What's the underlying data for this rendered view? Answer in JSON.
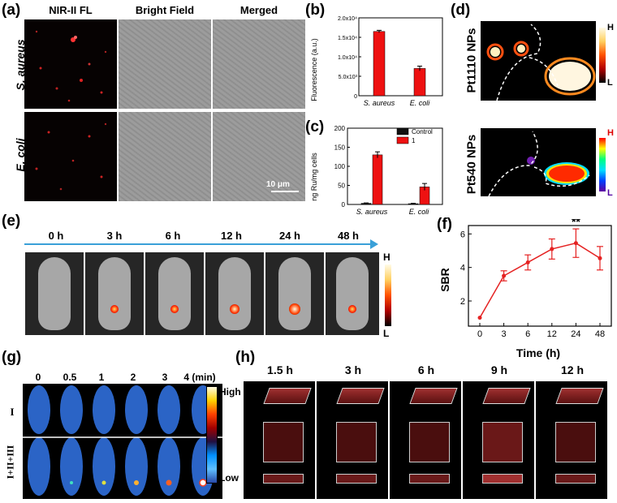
{
  "panel_a": {
    "label": "(a)",
    "col_headers": [
      "NIR-II FL",
      "Bright Field",
      "Merged"
    ],
    "row_labels": [
      "S. aureus",
      "E. coli"
    ],
    "scale_bar": "10 μm"
  },
  "panel_b": {
    "label": "(b)"
  },
  "panel_c": {
    "label": "(c)"
  },
  "panel_d": {
    "label": "(d)",
    "rows": [
      "Pt1110 NPs",
      "Pt540 NPs"
    ],
    "scale_high": "H",
    "scale_low": "L"
  },
  "panel_e": {
    "label": "(e)",
    "times": [
      "0 h",
      "3 h",
      "6 h",
      "12 h",
      "24 h",
      "48 h"
    ],
    "scale_high": "H",
    "scale_low": "L"
  },
  "panel_f": {
    "label": "(f)"
  },
  "panel_g": {
    "label": "(g)",
    "times": [
      "0",
      "0.5",
      "1",
      "2",
      "3",
      "4 (min)"
    ],
    "rows": [
      "I",
      "I+II+III"
    ],
    "scale_high": "High",
    "scale_low": "Low"
  },
  "panel_h": {
    "label": "(h)",
    "times": [
      "1.5 h",
      "3 h",
      "6 h",
      "9 h",
      "12 h"
    ]
  },
  "chart_data": [
    {
      "id": "b",
      "type": "bar",
      "categories": [
        "S. aureus",
        "E. coli"
      ],
      "values": [
        16500,
        7000
      ],
      "errors": [
        300,
        600
      ],
      "ylabel": "Fluorescence (a.u.)",
      "ylim": [
        0,
        20000
      ],
      "yticks": [
        "0",
        "5.0x10³",
        "1.0x10⁴",
        "1.5x10⁴",
        "2.0x10⁴"
      ],
      "color": "#ee1111"
    },
    {
      "id": "c",
      "type": "bar",
      "categories": [
        "S. aureus",
        "E. coli"
      ],
      "series": [
        {
          "name": "Control",
          "values": [
            3,
            2
          ],
          "errors": [
            1,
            1
          ],
          "color": "#111111"
        },
        {
          "name": "1",
          "values": [
            130,
            46
          ],
          "errors": [
            8,
            9
          ],
          "color": "#ee1111"
        }
      ],
      "ylabel": "ng Ru/mg cells",
      "ylim": [
        0,
        200
      ],
      "yticks": [
        "0",
        "50",
        "100",
        "150",
        "200"
      ]
    },
    {
      "id": "f",
      "type": "line",
      "x": [
        "0",
        "3",
        "6",
        "12",
        "24",
        "48"
      ],
      "values": [
        1.0,
        3.5,
        4.3,
        5.1,
        5.45,
        4.55
      ],
      "errors": [
        0,
        0.3,
        0.45,
        0.6,
        0.85,
        0.7
      ],
      "xlabel": "Time (h)",
      "ylabel": "SBR",
      "ylim": [
        0.5,
        6.5
      ],
      "yticks": [
        "2",
        "4",
        "6"
      ],
      "annotation": "**",
      "color": "#e52222"
    }
  ]
}
